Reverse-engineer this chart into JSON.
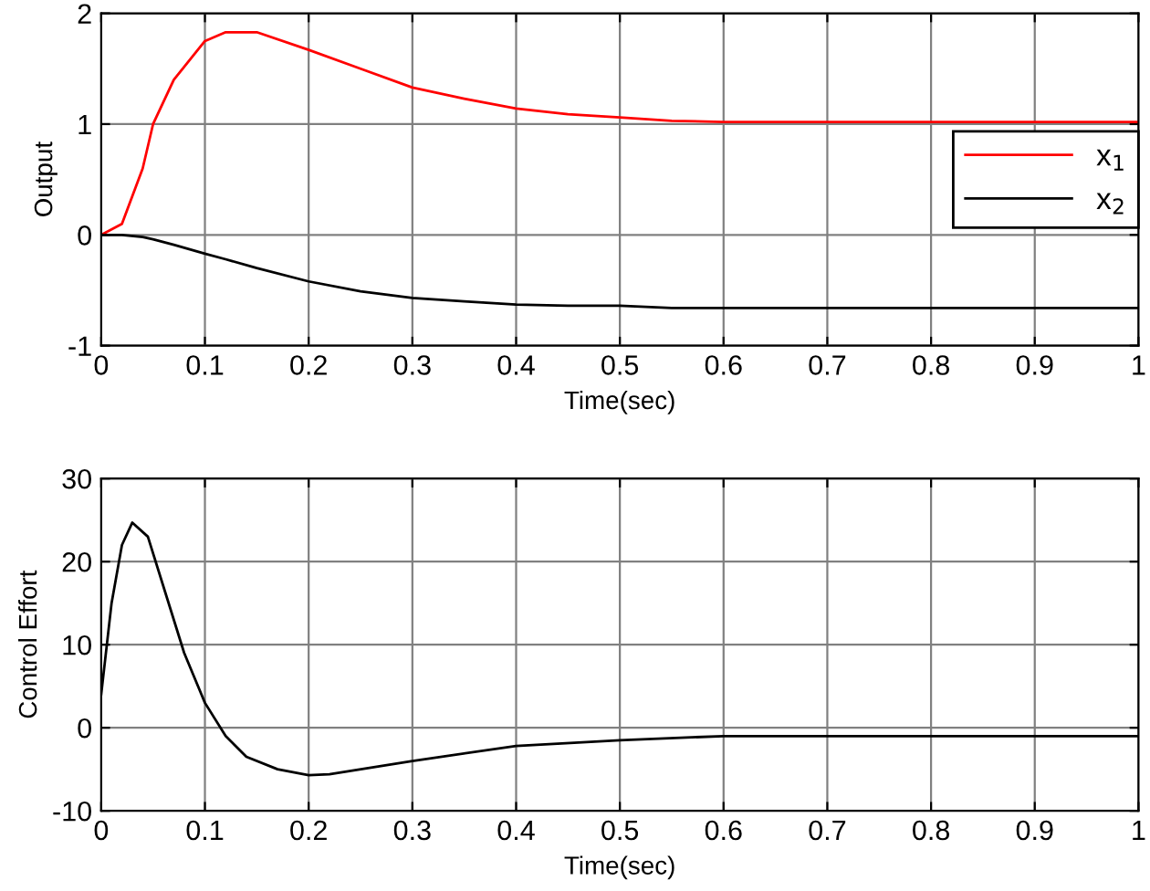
{
  "chart_data": [
    {
      "type": "line",
      "xlabel": "Time(sec)",
      "ylabel": "Output",
      "xlim": [
        0,
        1
      ],
      "ylim": [
        -1,
        2
      ],
      "xticks": [
        0,
        0.1,
        0.2,
        0.3,
        0.4,
        0.5,
        0.6,
        0.7,
        0.8,
        0.9,
        1
      ],
      "yticks": [
        -1,
        0,
        1,
        2
      ],
      "grid": true,
      "legend": "right",
      "x": [
        0,
        0.02,
        0.04,
        0.05,
        0.07,
        0.1,
        0.12,
        0.15,
        0.2,
        0.25,
        0.3,
        0.35,
        0.4,
        0.45,
        0.5,
        0.55,
        0.6,
        0.7,
        0.8,
        0.9,
        1
      ],
      "series": [
        {
          "name": "x$_{1}$",
          "color": "#ff0000",
          "values": [
            0,
            0.1,
            0.6,
            1.0,
            1.4,
            1.75,
            1.83,
            1.83,
            1.67,
            1.5,
            1.33,
            1.23,
            1.14,
            1.09,
            1.06,
            1.03,
            1.02,
            1.02,
            1.02,
            1.02,
            1.02
          ]
        },
        {
          "name": "x$_{2}$",
          "color": "#000000",
          "values": [
            0,
            0,
            -0.02,
            -0.04,
            -0.09,
            -0.17,
            -0.22,
            -0.3,
            -0.42,
            -0.51,
            -0.57,
            -0.6,
            -0.63,
            -0.64,
            -0.64,
            -0.66,
            -0.66,
            -0.66,
            -0.66,
            -0.66,
            -0.66
          ]
        }
      ]
    },
    {
      "type": "line",
      "xlabel": "Time(sec)",
      "ylabel": "Control Effort",
      "xlim": [
        0,
        1
      ],
      "ylim": [
        -10,
        30
      ],
      "xticks": [
        0,
        0.1,
        0.2,
        0.3,
        0.4,
        0.5,
        0.6,
        0.7,
        0.8,
        0.9,
        1
      ],
      "yticks": [
        -10,
        0,
        10,
        20,
        30
      ],
      "grid": true,
      "x": [
        0,
        0.01,
        0.02,
        0.03,
        0.045,
        0.06,
        0.08,
        0.1,
        0.12,
        0.14,
        0.17,
        0.2,
        0.22,
        0.3,
        0.4,
        0.5,
        0.6,
        0.7,
        0.8,
        0.9,
        1
      ],
      "series": [
        {
          "color": "#000000",
          "values": [
            4,
            15,
            22,
            24.7,
            23,
            17,
            9,
            3,
            -1,
            -3.5,
            -5,
            -5.7,
            -5.6,
            -4,
            -2.2,
            -1.5,
            -1,
            -1,
            -1,
            -1,
            -1
          ]
        }
      ]
    }
  ]
}
